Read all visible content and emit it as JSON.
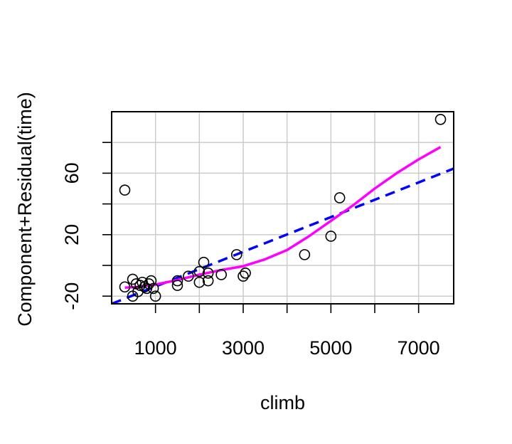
{
  "chart_data": {
    "type": "scatter",
    "title": "",
    "xlabel": "climb",
    "ylabel": "Component+Residual(time)",
    "xlim": [
      0,
      7800
    ],
    "ylim": [
      -25,
      100
    ],
    "x_ticks": [
      1000,
      3000,
      5000,
      7000
    ],
    "x_tick_labels": [
      "1000",
      "3000",
      "5000",
      "7000"
    ],
    "x_grid": [
      1000,
      2000,
      3000,
      4000,
      5000,
      6000,
      7000
    ],
    "y_ticks": [
      -20,
      0,
      20,
      40,
      60,
      80
    ],
    "y_tick_labels": [
      "-20",
      "",
      "20",
      "",
      "60",
      ""
    ],
    "y_grid": [
      -20,
      0,
      20,
      40,
      60,
      80
    ],
    "grid": true,
    "colors": {
      "points": "#000000",
      "fit_line": "#0000ff",
      "smooth_line": "#ff00ff",
      "grid": "#cccccc"
    },
    "points": [
      {
        "x": 300,
        "y": 49
      },
      {
        "x": 300,
        "y": -14
      },
      {
        "x": 480,
        "y": -9
      },
      {
        "x": 480,
        "y": -20
      },
      {
        "x": 560,
        "y": -12
      },
      {
        "x": 600,
        "y": -17
      },
      {
        "x": 650,
        "y": -13
      },
      {
        "x": 700,
        "y": -11
      },
      {
        "x": 750,
        "y": -14
      },
      {
        "x": 800,
        "y": -15
      },
      {
        "x": 850,
        "y": -12
      },
      {
        "x": 900,
        "y": -10
      },
      {
        "x": 950,
        "y": -15
      },
      {
        "x": 1000,
        "y": -20
      },
      {
        "x": 1500,
        "y": -10
      },
      {
        "x": 1500,
        "y": -13
      },
      {
        "x": 1750,
        "y": -7
      },
      {
        "x": 2000,
        "y": -4
      },
      {
        "x": 2000,
        "y": -11
      },
      {
        "x": 2100,
        "y": 2
      },
      {
        "x": 2200,
        "y": -5
      },
      {
        "x": 2200,
        "y": -10
      },
      {
        "x": 2500,
        "y": -6
      },
      {
        "x": 2850,
        "y": 7
      },
      {
        "x": 3000,
        "y": -7
      },
      {
        "x": 3050,
        "y": -5
      },
      {
        "x": 4400,
        "y": 7
      },
      {
        "x": 5000,
        "y": 19
      },
      {
        "x": 5200,
        "y": 44
      },
      {
        "x": 7500,
        "y": 95
      }
    ],
    "fit_line": [
      {
        "x": 0,
        "y": -25
      },
      {
        "x": 7800,
        "y": 63
      }
    ],
    "smooth_line": [
      {
        "x": 300,
        "y": -14.5
      },
      {
        "x": 600,
        "y": -14
      },
      {
        "x": 1000,
        "y": -12.5
      },
      {
        "x": 1500,
        "y": -9.5
      },
      {
        "x": 2000,
        "y": -6
      },
      {
        "x": 2500,
        "y": -3
      },
      {
        "x": 3000,
        "y": -0.5
      },
      {
        "x": 3500,
        "y": 4
      },
      {
        "x": 4000,
        "y": 10
      },
      {
        "x": 4500,
        "y": 19
      },
      {
        "x": 5000,
        "y": 29
      },
      {
        "x": 5500,
        "y": 39
      },
      {
        "x": 6000,
        "y": 50
      },
      {
        "x": 6500,
        "y": 60
      },
      {
        "x": 7000,
        "y": 69
      },
      {
        "x": 7500,
        "y": 77
      }
    ]
  }
}
